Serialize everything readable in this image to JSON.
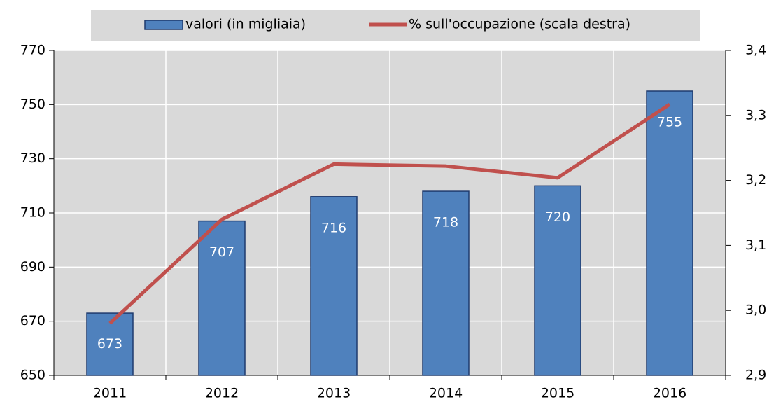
{
  "chart_data": {
    "type": "bar-line",
    "categories": [
      "2011",
      "2012",
      "2013",
      "2014",
      "2015",
      "2016"
    ],
    "series": [
      {
        "name": "valori (in migliaia)",
        "type": "bar",
        "color": "#4f81bd",
        "values": [
          673,
          707,
          716,
          718,
          720,
          755
        ]
      },
      {
        "name": "% sull'occupazione (scala destra)",
        "type": "line",
        "axis": "y2",
        "color": "#c0504d",
        "values": [
          2.98,
          3.14,
          3.225,
          3.222,
          3.204,
          3.317
        ]
      }
    ],
    "ylim": [
      650,
      770
    ],
    "yticks": [
      650,
      670,
      690,
      710,
      730,
      750,
      770
    ],
    "y2lim": [
      2.9,
      3.4
    ],
    "y2ticks": [
      {
        "value": 2.9,
        "label": "2,9"
      },
      {
        "value": 3.0,
        "label": "3,0"
      },
      {
        "value": 3.1,
        "label": "3,1"
      },
      {
        "value": 3.2,
        "label": "3,2"
      },
      {
        "value": 3.3,
        "label": "3,3"
      },
      {
        "value": 3.4,
        "label": "3,4"
      }
    ],
    "grid": true,
    "legend": "top"
  }
}
